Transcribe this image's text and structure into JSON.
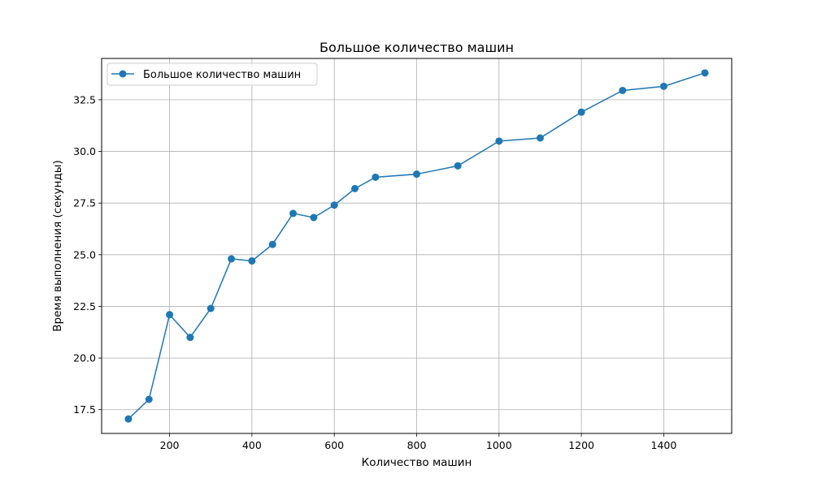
{
  "chart_data": {
    "type": "line",
    "title": "Большое количество машин",
    "xlabel": "Количество машин",
    "ylabel": "Время выполнения (секунды)",
    "xlim": [
      35,
      1565
    ],
    "ylim": [
      16.35,
      34.5
    ],
    "xticks": [
      200,
      400,
      600,
      800,
      1000,
      1200,
      1400
    ],
    "yticks": [
      17.5,
      20.0,
      22.5,
      25.0,
      27.5,
      30.0,
      32.5
    ],
    "xtick_labels": [
      "200",
      "400",
      "600",
      "800",
      "1000",
      "1200",
      "1400"
    ],
    "ytick_labels": [
      "17.5",
      "20.0",
      "22.5",
      "25.0",
      "27.5",
      "30.0",
      "32.5"
    ],
    "grid": true,
    "legend_position": "top-left",
    "series": [
      {
        "name": "Большое количество машин",
        "color": "#1f77b4",
        "marker": "circle",
        "x": [
          100,
          150,
          200,
          250,
          300,
          350,
          400,
          450,
          500,
          550,
          600,
          650,
          700,
          800,
          900,
          1000,
          1100,
          1200,
          1300,
          1400,
          1500
        ],
        "y": [
          17.05,
          18.0,
          22.1,
          21.0,
          22.4,
          24.8,
          24.7,
          25.5,
          27.0,
          26.8,
          27.4,
          28.2,
          28.75,
          28.9,
          29.3,
          30.5,
          30.65,
          31.9,
          32.95,
          33.15,
          33.8
        ]
      }
    ]
  }
}
